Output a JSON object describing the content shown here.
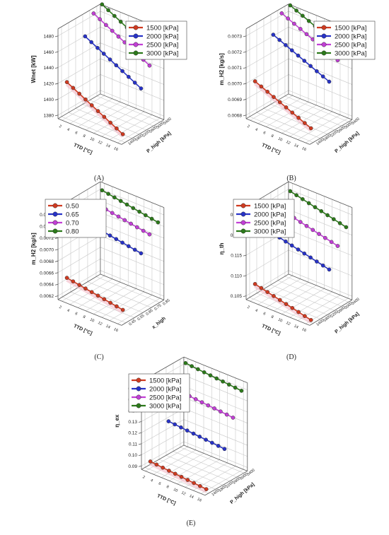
{
  "chart_data": [
    {
      "type": "line",
      "panel_label": "(A)",
      "zlabel": "Wnet [kW]",
      "xlabel": "TTD [°C]",
      "ylabel": "P_high [kPa]",
      "x_ticks": [
        "2",
        "4",
        "6",
        "8",
        "10",
        "12",
        "14",
        "16"
      ],
      "y_ticks": [
        "1400",
        "1800",
        "2200",
        "2600",
        "3000",
        "3400"
      ],
      "z_ticks": [
        "1380",
        "1400",
        "1420",
        "1440",
        "1460",
        "1480"
      ],
      "zlim": [
        1380,
        1490
      ],
      "legend": "top-right",
      "x": [
        1,
        2,
        3,
        4,
        5,
        6,
        7,
        8,
        9,
        10
      ],
      "series": [
        {
          "name": "1500 [kPa]",
          "color": "#d03a20",
          "values": [
            1423,
            1419,
            1415,
            1411,
            1407,
            1403,
            1399,
            1395,
            1391,
            1387
          ]
        },
        {
          "name": "2000 [kPa]",
          "color": "#2732c8",
          "values": [
            1466,
            1462,
            1458,
            1454,
            1450,
            1446,
            1442,
            1438,
            1434,
            1430
          ]
        },
        {
          "name": "2500 [kPa]",
          "color": "#c23fd6",
          "values": [
            1488,
            1484,
            1480,
            1476,
            1472,
            1468,
            1464,
            1460,
            1456,
            1452
          ]
        },
        {
          "name": "3000 [kPa]",
          "color": "#2c7a1a",
          "values": [
            1493,
            1489,
            1485,
            1481,
            1477,
            1473,
            1469,
            1465,
            1461,
            1457
          ]
        }
      ]
    },
    {
      "type": "line",
      "panel_label": "(B)",
      "zlabel": "m_H2 [kg/s]",
      "xlabel": "TTD [°C]",
      "ylabel": "P_high [kPa]",
      "x_ticks": [
        "2",
        "4",
        "6",
        "8",
        "10",
        "12",
        "14",
        "16"
      ],
      "y_ticks": [
        "1400",
        "1800",
        "2200",
        "2600",
        "3000",
        "3400"
      ],
      "z_ticks": [
        "0.0068",
        "0.0069",
        "0.0070",
        "0.0071",
        "0.0072",
        "0.0073"
      ],
      "zlim": [
        0.00675,
        0.00735
      ],
      "legend": "top-right",
      "x": [
        1,
        2,
        3,
        4,
        5,
        6,
        7,
        8,
        9,
        10
      ],
      "series": [
        {
          "name": "1500 [kPa]",
          "color": "#d03a20",
          "values": [
            0.00699,
            0.006972,
            0.006954,
            0.006936,
            0.006918,
            0.0069,
            0.006882,
            0.006864,
            0.006846,
            0.006828
          ]
        },
        {
          "name": "2000 [kPa]",
          "color": "#2732c8",
          "values": [
            0.00723,
            0.007212,
            0.007194,
            0.007176,
            0.007158,
            0.00714,
            0.007122,
            0.007104,
            0.007086,
            0.007068
          ]
        },
        {
          "name": "2500 [kPa]",
          "color": "#c23fd6",
          "values": [
            0.00734,
            0.007322,
            0.007304,
            0.007286,
            0.007268,
            0.00725,
            0.007232,
            0.007214,
            0.007196,
            0.007178
          ]
        },
        {
          "name": "3000 [kPa]",
          "color": "#2c7a1a",
          "values": [
            0.00736,
            0.007342,
            0.007324,
            0.007306,
            0.007288,
            0.00727,
            0.007252,
            0.007234,
            0.007216,
            0.007198
          ]
        }
      ]
    },
    {
      "type": "line",
      "panel_label": "(C)",
      "zlabel": "m_H2 [kg/s]",
      "xlabel": "TTD [°C]",
      "ylabel": "x_high",
      "x_ticks": [
        "2",
        "4",
        "6",
        "8",
        "10",
        "12",
        "14",
        "16"
      ],
      "y_ticks": [
        "0.45",
        "0.55",
        "0.65",
        "0.75",
        "0.85"
      ],
      "z_ticks": [
        "0.0062",
        "0.0064",
        "0.0066",
        "0.0068",
        "0.0070",
        "0.0072",
        "0.0074",
        "0.0076"
      ],
      "zlim": [
        0.0061,
        0.0077
      ],
      "legend": "top-left",
      "x": [
        1,
        2,
        3,
        4,
        5,
        6,
        7,
        8,
        9,
        10
      ],
      "series": [
        {
          "name": "0.50",
          "color": "#d03a20",
          "values": [
            0.00645,
            0.006432,
            0.006414,
            0.006396,
            0.006378,
            0.00636,
            0.006342,
            0.006324,
            0.006306,
            0.006288
          ]
        },
        {
          "name": "0.65",
          "color": "#2732c8",
          "values": [
            0.00724,
            0.007222,
            0.007204,
            0.007186,
            0.007168,
            0.00715,
            0.007132,
            0.007114,
            0.007096,
            0.007078
          ]
        },
        {
          "name": "0.70",
          "color": "#c23fd6",
          "values": [
            0.00748,
            0.007462,
            0.007444,
            0.007426,
            0.007408,
            0.00739,
            0.007372,
            0.007354,
            0.007336,
            0.007318
          ]
        },
        {
          "name": "0.80",
          "color": "#2c7a1a",
          "values": [
            0.0076,
            0.007582,
            0.007564,
            0.007546,
            0.007528,
            0.00751,
            0.007492,
            0.007474,
            0.007456,
            0.007438
          ]
        }
      ]
    },
    {
      "type": "line",
      "panel_label": "(D)",
      "zlabel": "η_th",
      "xlabel": "TTD [°C]",
      "ylabel": "P_high [kPa]",
      "x_ticks": [
        "2",
        "4",
        "6",
        "8",
        "10",
        "12",
        "14",
        "16"
      ],
      "y_ticks": [
        "1400",
        "1800",
        "2200",
        "2600",
        "3000",
        "3400"
      ],
      "z_ticks": [
        "0.105",
        "0.110",
        "0.115",
        "0.120",
        "0.125"
      ],
      "zlim": [
        0.102,
        0.127
      ],
      "legend": "top-left",
      "x": [
        1,
        2,
        3,
        4,
        5,
        6,
        7,
        8,
        9,
        10
      ],
      "series": [
        {
          "name": "1500 [kPa]",
          "color": "#d03a20",
          "values": [
            0.1058,
            0.1054,
            0.105,
            0.1046,
            0.1042,
            0.1038,
            0.1034,
            0.103,
            0.1026,
            0.1022
          ]
        },
        {
          "name": "2000 [kPa]",
          "color": "#2732c8",
          "values": [
            0.1165,
            0.1161,
            0.1157,
            0.1153,
            0.1149,
            0.1145,
            0.1141,
            0.1137,
            0.1133,
            0.1129
          ]
        },
        {
          "name": "2500 [kPa]",
          "color": "#c23fd6",
          "values": [
            0.1215,
            0.1211,
            0.1207,
            0.1203,
            0.1199,
            0.1195,
            0.1191,
            0.1187,
            0.1183,
            0.1179
          ]
        },
        {
          "name": "3000 [kPa]",
          "color": "#2c7a1a",
          "values": [
            0.1252,
            0.1248,
            0.1244,
            0.124,
            0.1236,
            0.1232,
            0.1228,
            0.1224,
            0.122,
            0.1216
          ]
        }
      ]
    },
    {
      "type": "line",
      "panel_label": "(E)",
      "zlabel": "η_ex",
      "xlabel": "TTD [°C]",
      "ylabel": "P_high [kPa]",
      "x_ticks": [
        "2",
        "4",
        "6",
        "8",
        "10",
        "12",
        "14",
        "16"
      ],
      "y_ticks": [
        "1400",
        "1800",
        "2200",
        "2600",
        "3000",
        "3400"
      ],
      "z_ticks": [
        "0.09",
        "0.10",
        "0.11",
        "0.12",
        "0.13",
        "0.14",
        "0.15",
        "0.16"
      ],
      "zlim": [
        0.085,
        0.165
      ],
      "legend": "top-left",
      "x": [
        1,
        2,
        3,
        4,
        5,
        6,
        7,
        8,
        9,
        10
      ],
      "series": [
        {
          "name": "1500 [kPa]",
          "color": "#d03a20",
          "values": [
            0.091,
            0.0905,
            0.09,
            0.0895,
            0.089,
            0.0885,
            0.088,
            0.0875,
            0.087,
            0.0865
          ]
        },
        {
          "name": "2000 [kPa]",
          "color": "#2732c8",
          "values": [
            0.118,
            0.1175,
            0.117,
            0.1165,
            0.116,
            0.1155,
            0.115,
            0.1145,
            0.114,
            0.1135
          ]
        },
        {
          "name": "2500 [kPa]",
          "color": "#c23fd6",
          "values": [
            0.142,
            0.1415,
            0.141,
            0.1405,
            0.14,
            0.1395,
            0.139,
            0.1385,
            0.138,
            0.1375
          ]
        },
        {
          "name": "3000 [kPa]",
          "color": "#2c7a1a",
          "values": [
            0.162,
            0.1615,
            0.161,
            0.1605,
            0.16,
            0.1595,
            0.159,
            0.1585,
            0.158,
            0.1575
          ]
        }
      ]
    }
  ]
}
